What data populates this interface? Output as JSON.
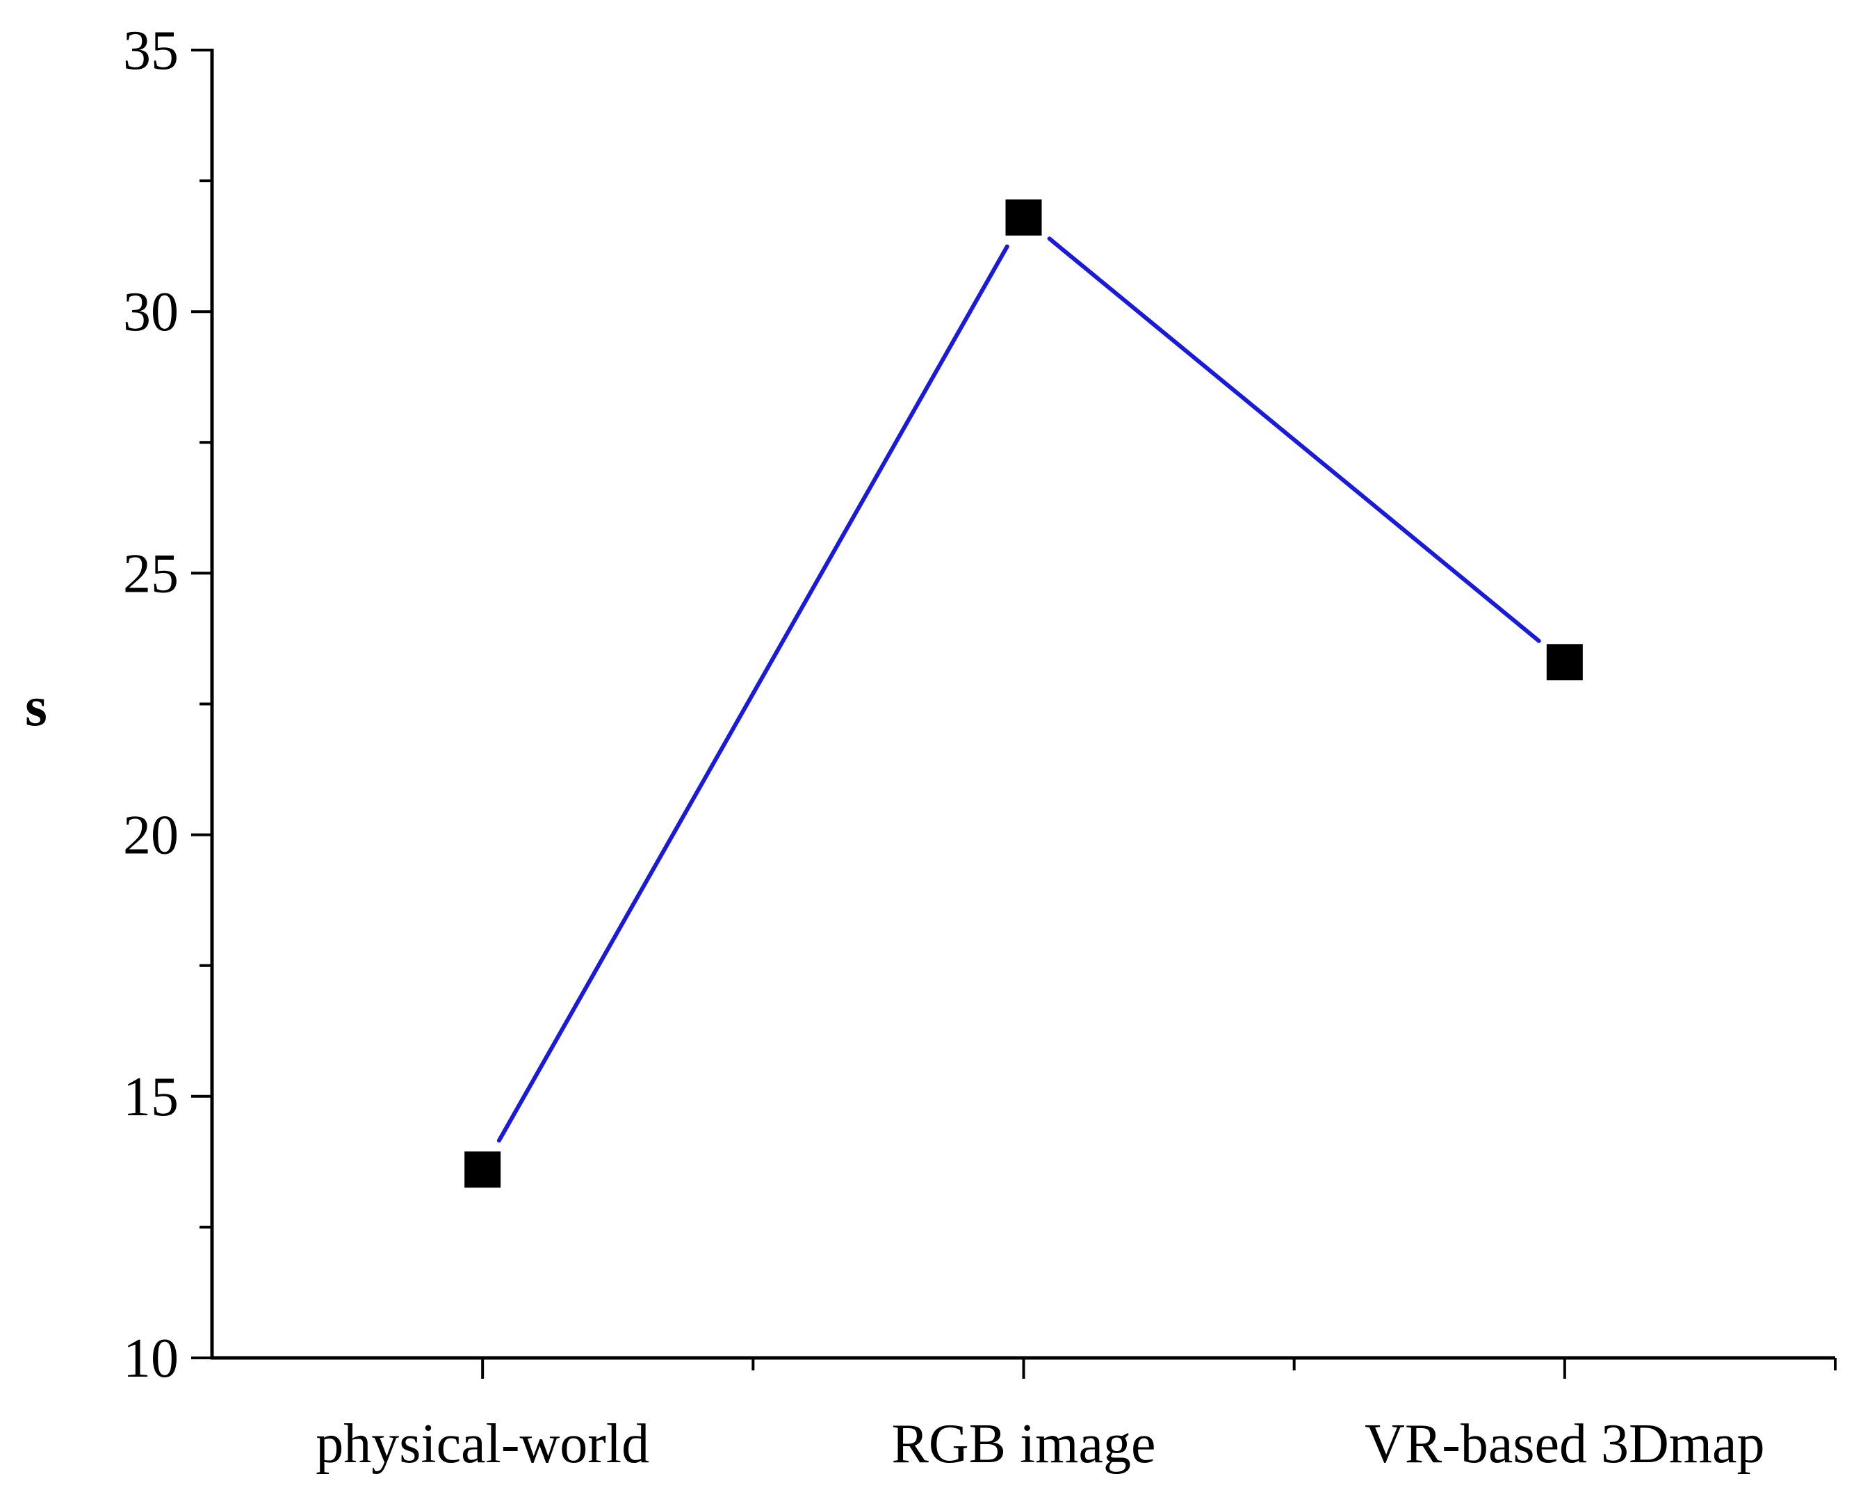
{
  "chart_data": {
    "type": "line",
    "categories": [
      "physical-world",
      "RGB image",
      "VR-based 3Dmap"
    ],
    "series": [
      {
        "values": [
          13.6,
          31.8,
          23.3
        ]
      }
    ],
    "title": "",
    "xlabel": "",
    "ylabel": "s",
    "ylim": [
      10,
      35
    ],
    "yticks": [
      "10",
      "15",
      "20",
      "25",
      "30",
      "35"
    ],
    "grid": false,
    "legend": "none",
    "colors": {
      "line": "#1a1adb",
      "marker": "#000000",
      "axis": "#000000"
    }
  }
}
